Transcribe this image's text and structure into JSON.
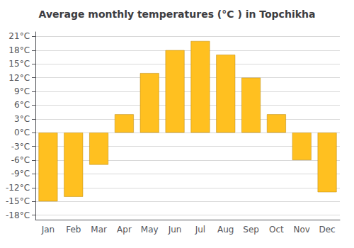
{
  "chart_data": {
    "type": "bar",
    "title": "Average monthly temperatures (°C ) in Topchikha",
    "categories": [
      "Jan",
      "Feb",
      "Mar",
      "Apr",
      "May",
      "Jun",
      "Jul",
      "Aug",
      "Sep",
      "Oct",
      "Nov",
      "Dec"
    ],
    "values": [
      -15,
      -14,
      -7,
      4,
      13,
      18,
      20,
      17,
      12,
      4,
      -6,
      -13
    ],
    "color": "#FFC020",
    "ylim": [
      -19,
      22
    ],
    "yticks": [
      {
        "value": -18,
        "label": "-18°C"
      },
      {
        "value": -15,
        "label": "-15°C"
      },
      {
        "value": -12,
        "label": "-12°C"
      },
      {
        "value": -9,
        "label": "-9°C"
      },
      {
        "value": -6,
        "label": "-6°C"
      },
      {
        "value": -3,
        "label": "-3°C"
      },
      {
        "value": 0,
        "label": "0°C"
      },
      {
        "value": 3,
        "label": "3°C"
      },
      {
        "value": 6,
        "label": "6°C"
      },
      {
        "value": 9,
        "label": "9°C"
      },
      {
        "value": 12,
        "label": "12°C"
      },
      {
        "value": 15,
        "label": "15°C"
      },
      {
        "value": 18,
        "label": "18°C"
      },
      {
        "value": 21,
        "label": "21°C"
      }
    ],
    "grid": true
  }
}
